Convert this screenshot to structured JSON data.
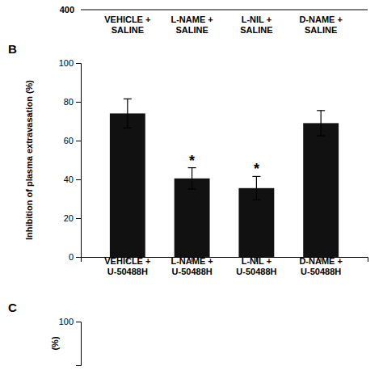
{
  "chart_data": [
    {
      "type": "bar",
      "title": "B",
      "categories": [
        "VEHICLE +\nU-50488H",
        "L-NAME +\nU-50488H",
        "L-NIL +\nU-50488H",
        "D-NAME +\nU-50488H"
      ],
      "values": [
        74.0,
        40.5,
        35.5,
        69.0
      ],
      "errors": [
        7.5,
        5.5,
        6.0,
        6.5
      ],
      "significance": [
        null,
        "*",
        "*",
        null
      ],
      "color": "#111111",
      "ylabel": "Inhibition of plasma extravasation (%)",
      "ylim": [
        0,
        100
      ],
      "yticks": [
        0,
        20,
        40,
        60,
        80,
        100
      ],
      "annotations": [
        "400",
        "VEHICLE +\nSALINE",
        "L-NAME +\nSALINE",
        "L-NIL +\nSALINE",
        "D-NAME +\nSALINE"
      ]
    },
    {
      "type": "bar",
      "title": "C",
      "categories": [],
      "values": [],
      "ylabel": "(%)",
      "ylim": [
        0,
        100
      ],
      "yticks": [
        100
      ],
      "tick_labels": "y"
    }
  ]
}
